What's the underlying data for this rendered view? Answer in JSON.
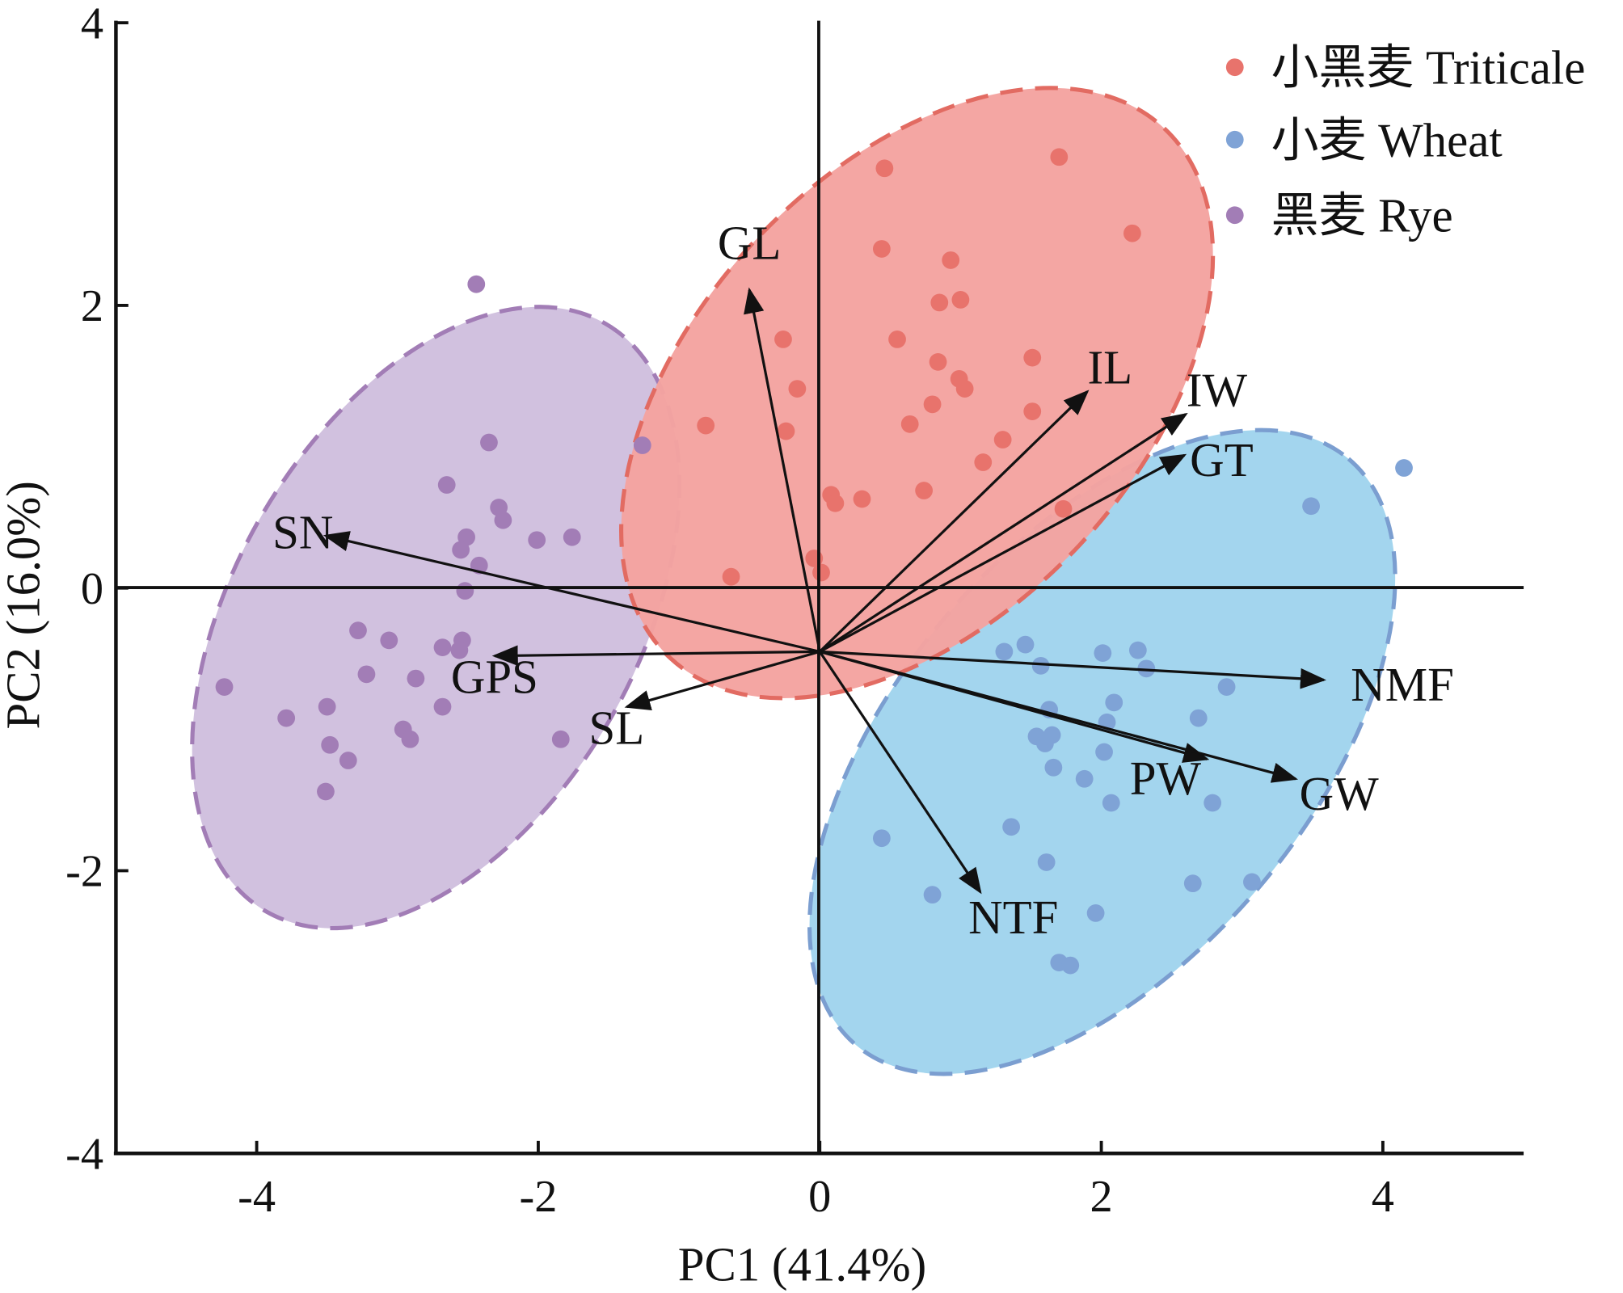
{
  "chart_data": {
    "type": "scatter",
    "subtype": "pca-biplot",
    "xlabel": "PC1 (41.4%)",
    "ylabel": "PC2 (16.0%)",
    "xlim": [
      -5,
      5
    ],
    "ylim": [
      -4,
      4
    ],
    "xticks": [
      -4,
      -2,
      0,
      2,
      4
    ],
    "yticks": [
      -4,
      -2,
      0,
      2,
      4
    ],
    "legend_position": "top-right",
    "series": [
      {
        "name": "小黑麦 Triticale",
        "color": "#e8736c",
        "fill": "#f4a3a0",
        "edge": "#e26b62",
        "points": [
          [
            0.46,
            2.97
          ],
          [
            1.7,
            3.05
          ],
          [
            2.22,
            2.51
          ],
          [
            0.44,
            2.4
          ],
          [
            0.93,
            2.32
          ],
          [
            0.85,
            2.02
          ],
          [
            1.0,
            2.04
          ],
          [
            -0.26,
            1.76
          ],
          [
            0.55,
            1.76
          ],
          [
            1.51,
            1.63
          ],
          [
            0.84,
            1.6
          ],
          [
            0.99,
            1.48
          ],
          [
            -0.16,
            1.41
          ],
          [
            1.03,
            1.41
          ],
          [
            0.8,
            1.3
          ],
          [
            1.51,
            1.25
          ],
          [
            -0.81,
            1.15
          ],
          [
            -0.24,
            1.11
          ],
          [
            0.64,
            1.16
          ],
          [
            1.3,
            1.05
          ],
          [
            1.16,
            0.89
          ],
          [
            0.74,
            0.69
          ],
          [
            0.08,
            0.66
          ],
          [
            0.11,
            0.6
          ],
          [
            0.3,
            0.63
          ],
          [
            1.73,
            0.56
          ],
          [
            -0.63,
            0.08
          ],
          [
            -0.04,
            0.21
          ],
          [
            0.01,
            0.11
          ]
        ]
      },
      {
        "name": "小麦 Wheat",
        "color": "#7fa3d6",
        "fill": "#a3d5ee",
        "edge": "#7b9ed0",
        "points": [
          [
            4.15,
            0.85
          ],
          [
            3.49,
            0.58
          ],
          [
            1.31,
            -0.45
          ],
          [
            1.46,
            -0.4
          ],
          [
            1.57,
            -0.55
          ],
          [
            2.01,
            -0.46
          ],
          [
            2.26,
            -0.44
          ],
          [
            2.32,
            -0.57
          ],
          [
            2.89,
            -0.7
          ],
          [
            2.09,
            -0.81
          ],
          [
            1.63,
            -0.86
          ],
          [
            2.04,
            -0.95
          ],
          [
            2.69,
            -0.92
          ],
          [
            1.54,
            -1.05
          ],
          [
            1.65,
            -1.04
          ],
          [
            1.6,
            -1.1
          ],
          [
            2.02,
            -1.16
          ],
          [
            1.66,
            -1.27
          ],
          [
            1.88,
            -1.35
          ],
          [
            2.07,
            -1.52
          ],
          [
            2.79,
            -1.52
          ],
          [
            0.44,
            -1.77
          ],
          [
            1.36,
            -1.69
          ],
          [
            1.61,
            -1.94
          ],
          [
            0.8,
            -2.17
          ],
          [
            2.65,
            -2.09
          ],
          [
            3.07,
            -2.08
          ],
          [
            1.96,
            -2.3
          ],
          [
            1.7,
            -2.65
          ],
          [
            1.78,
            -2.67
          ]
        ]
      },
      {
        "name": "黑麦 Rye",
        "color": "#a27db6",
        "fill": "#d1c1df",
        "edge": "#a27db6",
        "points": [
          [
            -2.44,
            2.15
          ],
          [
            -2.35,
            1.03
          ],
          [
            -2.65,
            0.73
          ],
          [
            -2.28,
            0.57
          ],
          [
            -2.25,
            0.48
          ],
          [
            -2.51,
            0.36
          ],
          [
            -2.55,
            0.27
          ],
          [
            -2.42,
            0.16
          ],
          [
            -2.01,
            0.34
          ],
          [
            -1.76,
            0.36
          ],
          [
            -2.52,
            -0.02
          ],
          [
            -3.28,
            -0.3
          ],
          [
            -3.06,
            -0.37
          ],
          [
            -2.54,
            -0.37
          ],
          [
            -2.56,
            -0.44
          ],
          [
            -2.68,
            -0.42
          ],
          [
            -3.22,
            -0.61
          ],
          [
            -2.87,
            -0.64
          ],
          [
            -4.23,
            -0.7
          ],
          [
            -3.5,
            -0.84
          ],
          [
            -2.68,
            -0.84
          ],
          [
            -3.79,
            -0.92
          ],
          [
            -2.96,
            -1.0
          ],
          [
            -2.91,
            -1.07
          ],
          [
            -3.48,
            -1.11
          ],
          [
            -1.84,
            -1.07
          ],
          [
            -3.35,
            -1.22
          ],
          [
            -3.51,
            -1.44
          ],
          [
            -1.26,
            1.01
          ]
        ]
      }
    ],
    "loadings_origin": [
      0,
      -0.45
    ],
    "loadings": [
      {
        "name": "GL",
        "x": -0.5,
        "y": 2.11
      },
      {
        "name": "IL",
        "x": 1.9,
        "y": 1.39
      },
      {
        "name": "IW",
        "x": 2.6,
        "y": 1.23
      },
      {
        "name": "GT",
        "x": 2.59,
        "y": 0.94
      },
      {
        "name": "SN",
        "x": -3.51,
        "y": 0.37
      },
      {
        "name": "GPS",
        "x": -2.31,
        "y": -0.48
      },
      {
        "name": "SL",
        "x": -1.37,
        "y": -0.84
      },
      {
        "name": "NMF",
        "x": 3.58,
        "y": -0.65
      },
      {
        "name": "PW",
        "x": 2.75,
        "y": -1.21
      },
      {
        "name": "GW",
        "x": 3.38,
        "y": -1.35
      },
      {
        "name": "NTF",
        "x": 1.14,
        "y": -2.15
      }
    ]
  }
}
